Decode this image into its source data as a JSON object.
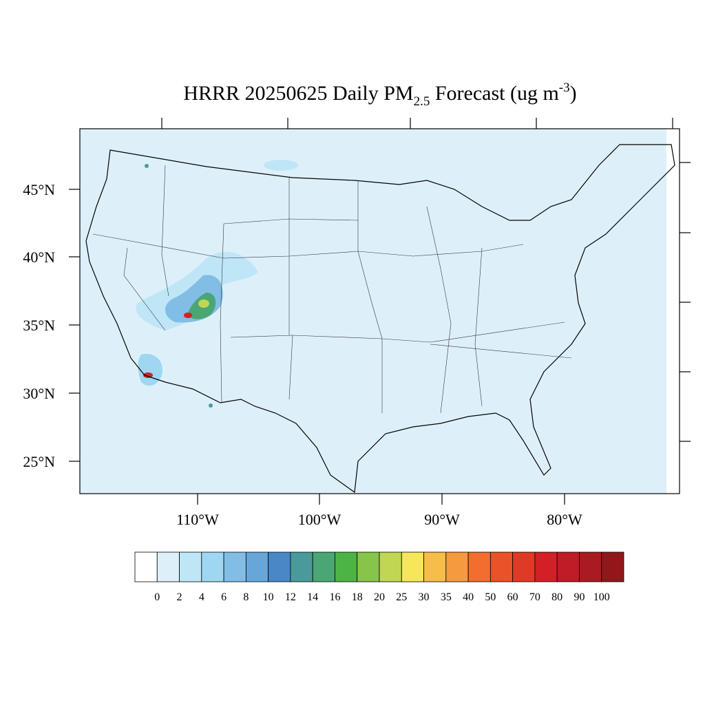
{
  "title": {
    "main": "HRRR 20250625 Daily PM",
    "subscript": "2.5",
    "after": " Forecast (ug m",
    "superscript": "-3",
    "close": ")"
  },
  "lat_labels": [
    "45°N",
    "40°N",
    "35°N",
    "30°N",
    "25°N"
  ],
  "lon_labels": [
    "110°W",
    "100°W",
    "90°W",
    "80°W"
  ],
  "colorbar": {
    "levels": [
      0,
      2,
      4,
      6,
      8,
      10,
      12,
      14,
      16,
      18,
      20,
      25,
      30,
      35,
      40,
      50,
      60,
      70,
      80,
      90,
      100
    ],
    "colors": [
      "#ffffff",
      "#ddf0fa",
      "#bfe6f7",
      "#9fd6f2",
      "#82bde6",
      "#67a6d9",
      "#4a87c6",
      "#4a9a9c",
      "#4aa673",
      "#4bb444",
      "#86c44a",
      "#c1d653",
      "#f6e65a",
      "#f6bd4a",
      "#f59a3e",
      "#f26d2e",
      "#ea5229",
      "#de3a25",
      "#d41f27",
      "#bf1c25",
      "#a91b20",
      "#91171b"
    ]
  }
}
